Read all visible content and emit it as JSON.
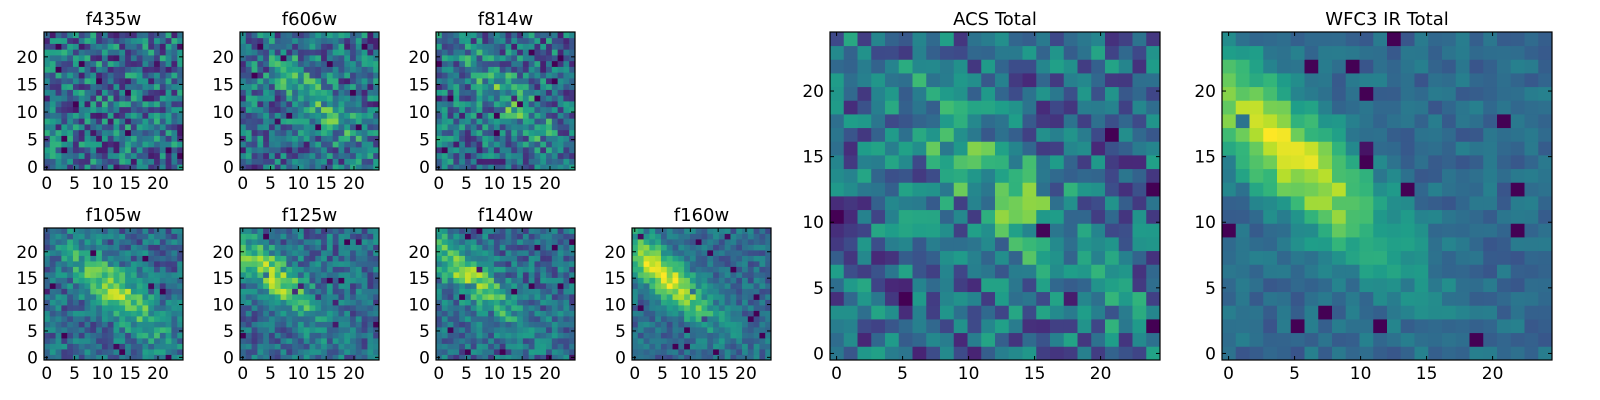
{
  "chart_data": [
    {
      "type": "heatmap",
      "title": "f435w",
      "xlim": [
        0,
        24
      ],
      "ylim": [
        0,
        24
      ],
      "xticks": [
        0,
        5,
        10,
        15,
        20
      ],
      "yticks": [
        0,
        5,
        10,
        15,
        20
      ],
      "colormap": "viridis",
      "pattern": "noise",
      "peak": [
        12,
        12
      ],
      "cells": [
        24,
        24
      ]
    },
    {
      "type": "heatmap",
      "title": "f606w",
      "xlim": [
        0,
        24
      ],
      "ylim": [
        0,
        24
      ],
      "xticks": [
        0,
        5,
        10,
        15,
        20
      ],
      "yticks": [
        0,
        5,
        10,
        15,
        20
      ],
      "colormap": "viridis",
      "pattern": "faint diagonal band",
      "peak": [
        12,
        12
      ],
      "cells": [
        24,
        24
      ]
    },
    {
      "type": "heatmap",
      "title": "f814w",
      "xlim": [
        0,
        24
      ],
      "ylim": [
        0,
        24
      ],
      "xticks": [
        0,
        5,
        10,
        15,
        20
      ],
      "yticks": [
        0,
        5,
        10,
        15,
        20
      ],
      "colormap": "viridis",
      "pattern": "faint diagonal band",
      "peak": [
        12,
        12
      ],
      "cells": [
        24,
        24
      ]
    },
    {
      "type": "heatmap",
      "title": "f105w",
      "xlim": [
        0,
        24
      ],
      "ylim": [
        0,
        24
      ],
      "xticks": [
        0,
        5,
        10,
        15,
        20
      ],
      "yticks": [
        0,
        5,
        10,
        15,
        20
      ],
      "colormap": "viridis",
      "pattern": "diagonal band",
      "peak": [
        12,
        12
      ],
      "cells": [
        24,
        24
      ]
    },
    {
      "type": "heatmap",
      "title": "f125w",
      "xlim": [
        0,
        24
      ],
      "ylim": [
        0,
        24
      ],
      "xticks": [
        0,
        5,
        10,
        15,
        20
      ],
      "yticks": [
        0,
        5,
        10,
        15,
        20
      ],
      "colormap": "viridis",
      "pattern": "diagonal band",
      "peak": [
        5,
        15
      ],
      "cells": [
        24,
        24
      ]
    },
    {
      "type": "heatmap",
      "title": "f140w",
      "xlim": [
        0,
        24
      ],
      "ylim": [
        0,
        24
      ],
      "xticks": [
        0,
        5,
        10,
        15,
        20
      ],
      "yticks": [
        0,
        5,
        10,
        15,
        20
      ],
      "colormap": "viridis",
      "pattern": "diagonal band",
      "peak": [
        5,
        15
      ],
      "cells": [
        24,
        24
      ]
    },
    {
      "type": "heatmap",
      "title": "f160w",
      "xlim": [
        0,
        24
      ],
      "ylim": [
        0,
        24
      ],
      "xticks": [
        0,
        5,
        10,
        15,
        20
      ],
      "yticks": [
        0,
        5,
        10,
        15,
        20
      ],
      "colormap": "viridis",
      "pattern": "strong diagonal band",
      "peak": [
        5,
        15
      ],
      "cells": [
        24,
        24
      ]
    },
    {
      "type": "heatmap",
      "title": "ACS Total",
      "xlim": [
        0,
        24
      ],
      "ylim": [
        0,
        24
      ],
      "xticks": [
        0,
        5,
        10,
        15,
        20
      ],
      "yticks": [
        0,
        5,
        10,
        15,
        20
      ],
      "colormap": "viridis",
      "pattern": "noisy, bright blobs",
      "peak": [
        12,
        12
      ],
      "cells": [
        24,
        24
      ]
    },
    {
      "type": "heatmap",
      "title": "WFC3 IR Total",
      "xlim": [
        0,
        24
      ],
      "ylim": [
        0,
        24
      ],
      "xticks": [
        0,
        5,
        10,
        15,
        20
      ],
      "yticks": [
        0,
        5,
        10,
        15,
        20
      ],
      "colormap": "viridis",
      "pattern": "smooth diagonal band",
      "peak": [
        4,
        15
      ],
      "cells": [
        24,
        24
      ]
    }
  ]
}
